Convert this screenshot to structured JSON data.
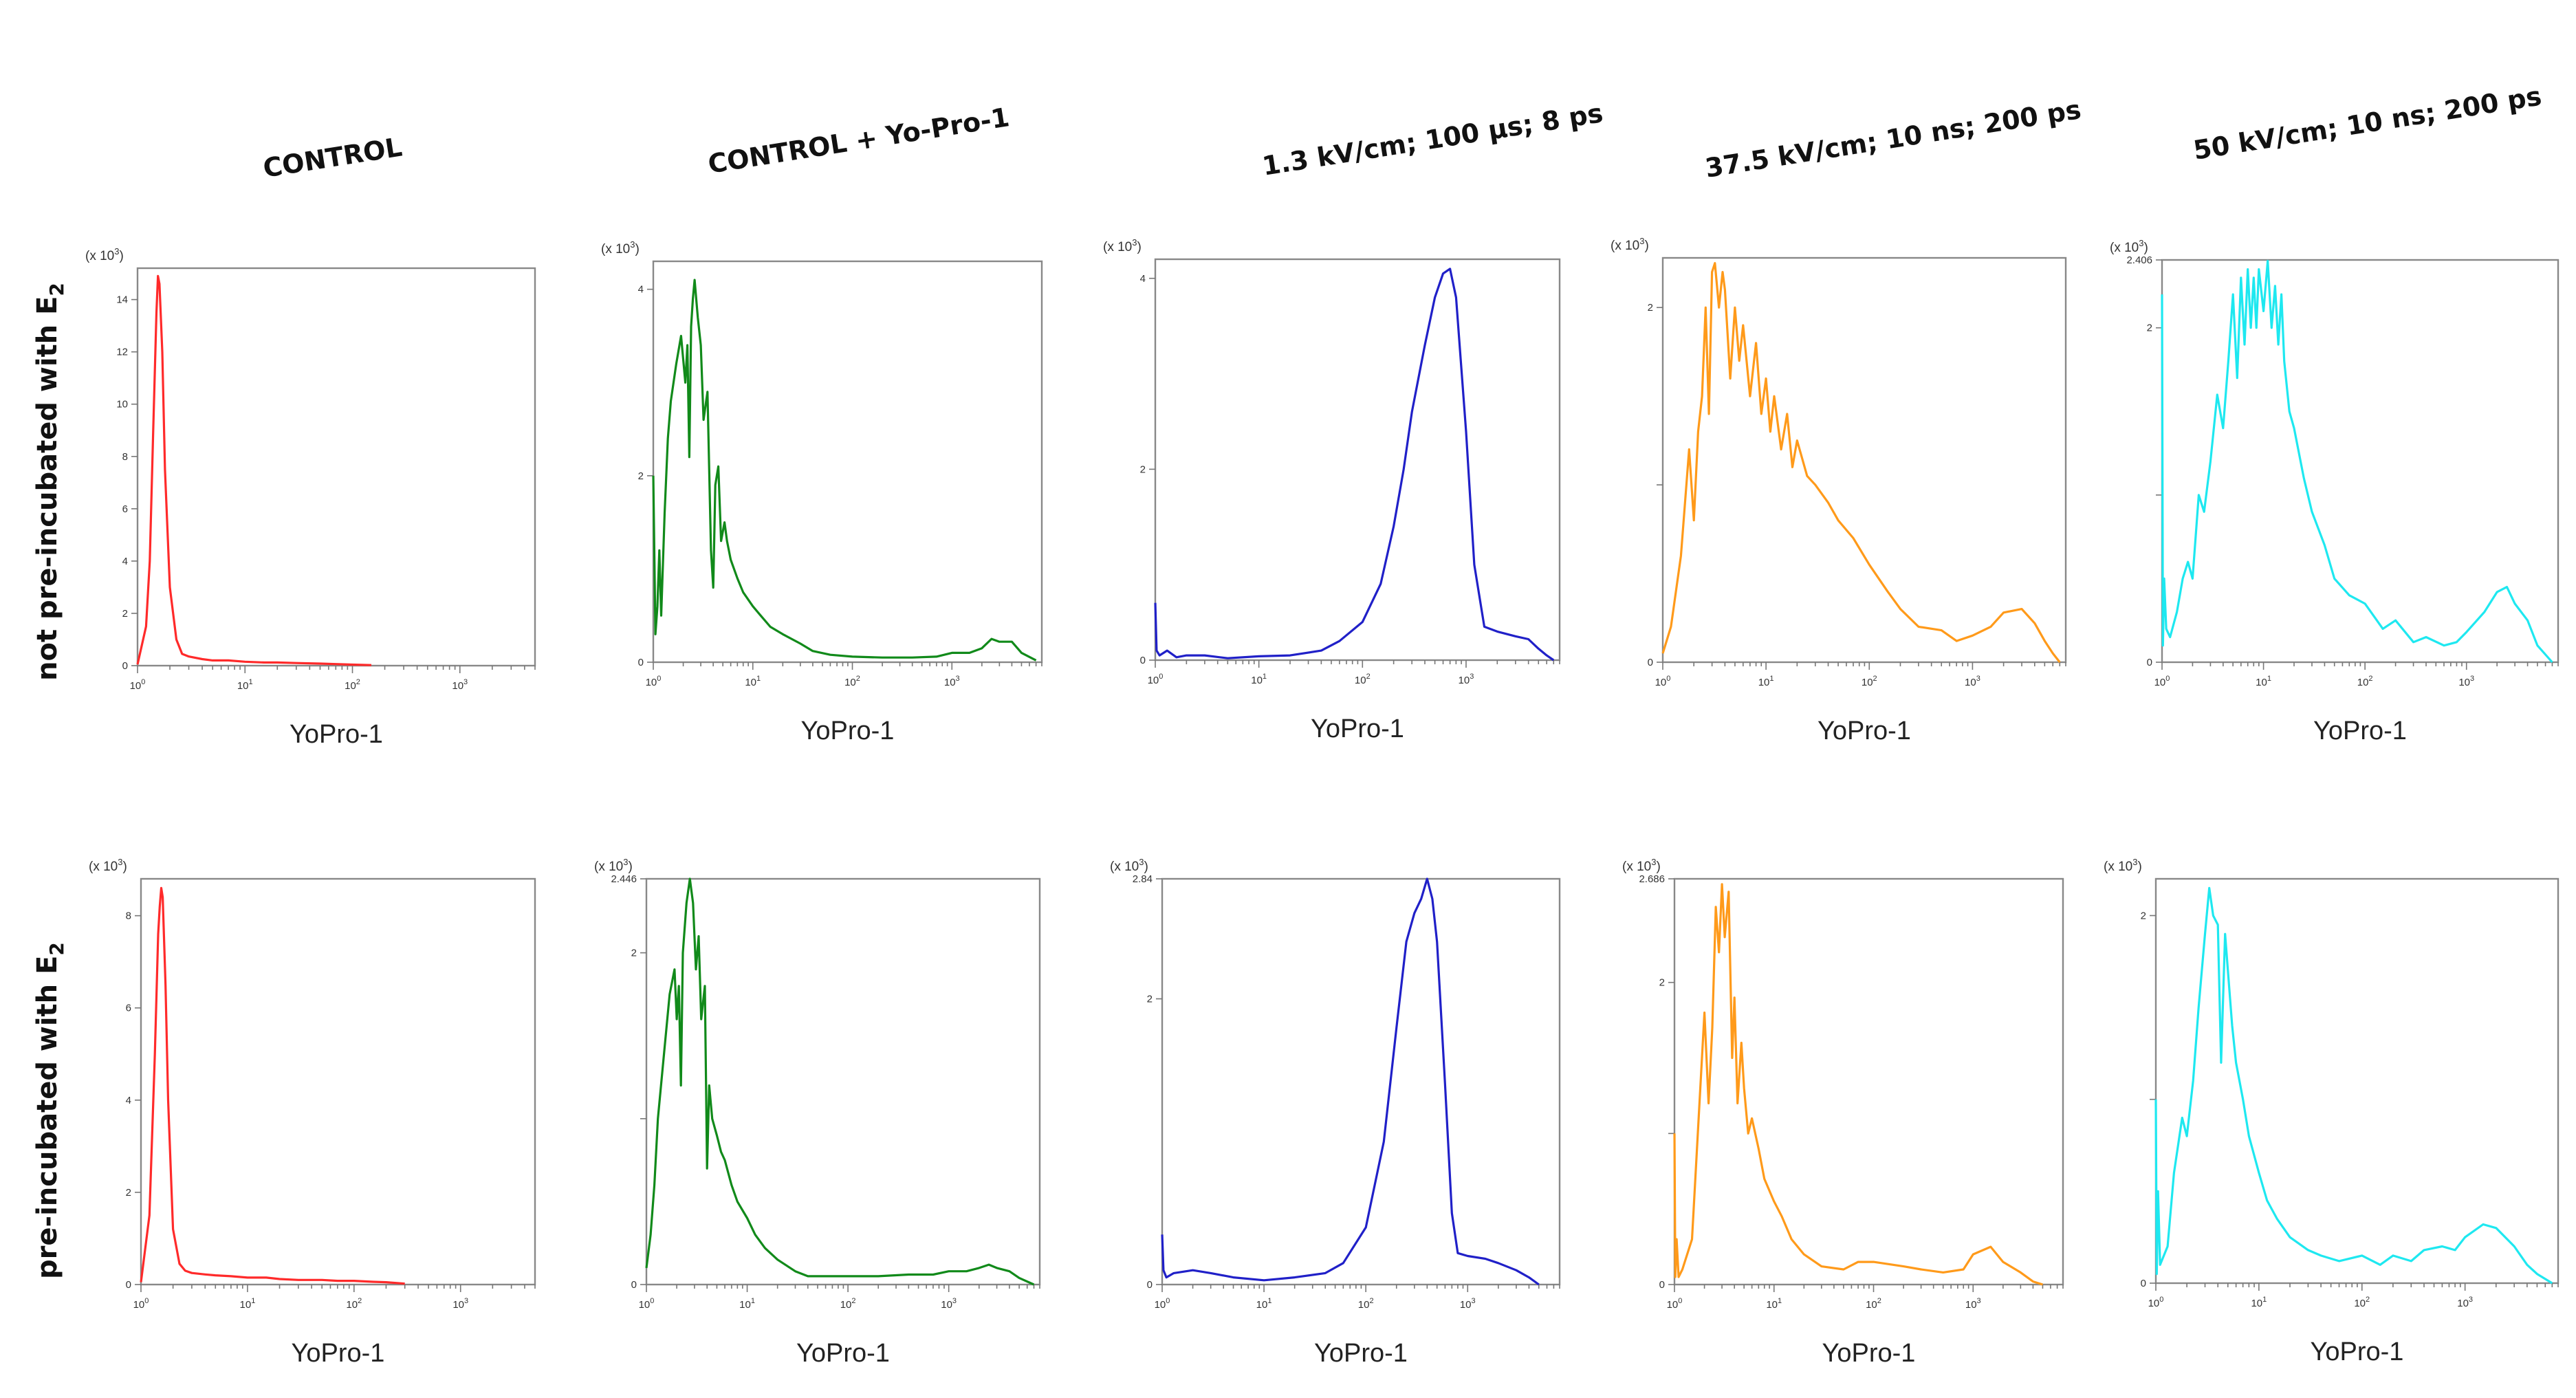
{
  "chart_data": {
    "type": "line",
    "column_titles": [
      "CONTROL",
      "CONTROL + Yo-Pro-1",
      "1.3 kV/cm; 100 µs; 8 ps",
      "37.5 kV/cm; 10 ns; 200 ps",
      "50 kV/cm; 10 ns; 200 ps"
    ],
    "row_titles": [
      "not pre-incubated with E",
      "pre-incubated with E"
    ],
    "row_title_subscript": "2",
    "y_multiplier_label": "(x 10",
    "y_multiplier_exp": "3",
    "y_multiplier_close": ")",
    "xlabel": "YoPro-1",
    "x_scale": "log",
    "x_tick_labels": [
      "0",
      "1",
      "2",
      "3"
    ],
    "panels": [
      {
        "row": 0,
        "col": 0,
        "color": "#ff2a2a",
        "xlim": [
          1,
          5000
        ],
        "ylim": [
          0,
          15.2
        ],
        "yticks": [
          0,
          2,
          4,
          6,
          8,
          10,
          12,
          14
        ],
        "ytick_labels": [
          "0",
          "2",
          "4",
          "6",
          "8",
          "10",
          "12",
          "14"
        ],
        "x_extent": 5000,
        "x": [
          1.0,
          1.2,
          1.3,
          1.4,
          1.5,
          1.55,
          1.6,
          1.7,
          1.8,
          2.0,
          2.3,
          2.6,
          3.0,
          4.0,
          5.0,
          7.0,
          10,
          15,
          20,
          30,
          50,
          70,
          100,
          150
        ],
        "y": [
          0.05,
          1.5,
          4.0,
          9.0,
          13.5,
          14.9,
          14.6,
          12.0,
          7.5,
          3.0,
          1.0,
          0.45,
          0.35,
          0.25,
          0.2,
          0.2,
          0.15,
          0.12,
          0.12,
          0.1,
          0.08,
          0.06,
          0.04,
          0.02
        ]
      },
      {
        "row": 0,
        "col": 1,
        "color": "#118a1a",
        "xlim": [
          1,
          8000
        ],
        "ylim": [
          0,
          4.3
        ],
        "yticks": [
          0,
          2,
          4
        ],
        "ytick_labels": [
          "0",
          "2",
          "4"
        ],
        "x_extent": 7000,
        "x": [
          1.0,
          1.05,
          1.1,
          1.15,
          1.2,
          1.3,
          1.4,
          1.5,
          1.7,
          1.9,
          2.1,
          2.2,
          2.3,
          2.4,
          2.5,
          2.6,
          2.8,
          3.0,
          3.2,
          3.5,
          3.8,
          4.0,
          4.2,
          4.5,
          4.8,
          5.2,
          5.5,
          6,
          7,
          8,
          10,
          12,
          15,
          20,
          30,
          40,
          60,
          100,
          200,
          400,
          700,
          1000,
          1500,
          2000,
          2500,
          3000,
          4000,
          5000,
          7000
        ],
        "y": [
          2.0,
          0.3,
          0.6,
          1.2,
          0.5,
          1.6,
          2.4,
          2.8,
          3.2,
          3.5,
          3.0,
          3.4,
          2.2,
          3.6,
          3.9,
          4.1,
          3.7,
          3.4,
          2.6,
          2.9,
          1.2,
          0.8,
          1.9,
          2.1,
          1.3,
          1.5,
          1.3,
          1.1,
          0.9,
          0.75,
          0.6,
          0.5,
          0.38,
          0.3,
          0.2,
          0.12,
          0.08,
          0.06,
          0.05,
          0.05,
          0.06,
          0.1,
          0.1,
          0.15,
          0.25,
          0.22,
          0.22,
          0.1,
          0.02
        ]
      },
      {
        "row": 0,
        "col": 2,
        "color": "#2020c8",
        "xlim": [
          1,
          8000
        ],
        "ylim": [
          0,
          4.2
        ],
        "yticks": [
          0,
          2,
          4
        ],
        "ytick_labels": [
          "0",
          "2",
          "4"
        ],
        "x_extent": 7000,
        "x": [
          1.0,
          1.03,
          1.1,
          1.3,
          1.6,
          2,
          3,
          5,
          10,
          20,
          40,
          60,
          100,
          150,
          200,
          250,
          300,
          400,
          500,
          600,
          700,
          800,
          1000,
          1200,
          1500,
          2000,
          3000,
          4000,
          5000,
          6000,
          7000
        ],
        "y": [
          0.6,
          0.1,
          0.05,
          0.1,
          0.03,
          0.05,
          0.05,
          0.02,
          0.04,
          0.05,
          0.1,
          0.2,
          0.4,
          0.8,
          1.4,
          2.0,
          2.6,
          3.3,
          3.8,
          4.05,
          4.1,
          3.8,
          2.4,
          1.0,
          0.35,
          0.3,
          0.25,
          0.22,
          0.12,
          0.05,
          0.0
        ]
      },
      {
        "row": 0,
        "col": 3,
        "color": "#ff9a1a",
        "xlim": [
          1,
          8000
        ],
        "ylim": [
          0,
          2.28
        ],
        "yticks": [
          0,
          1,
          2
        ],
        "ytick_labels": [
          "0",
          "",
          "2"
        ],
        "x_extent": 7000,
        "x": [
          1.0,
          1.2,
          1.5,
          1.8,
          2.0,
          2.2,
          2.4,
          2.6,
          2.8,
          3.0,
          3.2,
          3.5,
          3.8,
          4.0,
          4.5,
          5,
          5.5,
          6,
          7,
          8,
          9,
          10,
          11,
          12,
          14,
          16,
          18,
          20,
          25,
          30,
          40,
          50,
          70,
          100,
          150,
          200,
          300,
          500,
          700,
          1000,
          1500,
          2000,
          3000,
          4000,
          5000,
          6000,
          7000
        ],
        "y": [
          0.05,
          0.2,
          0.6,
          1.2,
          0.8,
          1.3,
          1.5,
          2.0,
          1.4,
          2.2,
          2.25,
          2.0,
          2.2,
          2.1,
          1.6,
          2.0,
          1.7,
          1.9,
          1.5,
          1.8,
          1.4,
          1.6,
          1.3,
          1.5,
          1.2,
          1.4,
          1.1,
          1.25,
          1.05,
          1.0,
          0.9,
          0.8,
          0.7,
          0.55,
          0.4,
          0.3,
          0.2,
          0.18,
          0.12,
          0.15,
          0.2,
          0.28,
          0.3,
          0.22,
          0.12,
          0.05,
          0.0
        ]
      },
      {
        "row": 0,
        "col": 4,
        "color": "#1ee8f0",
        "xlim": [
          1,
          8000
        ],
        "ylim": [
          0,
          2.406
        ],
        "yticks": [
          0,
          1,
          2,
          2.406
        ],
        "ytick_labels": [
          "0",
          "",
          "2",
          "2.406"
        ],
        "x_extent": 7000,
        "x": [
          1.0,
          1.02,
          1.05,
          1.1,
          1.2,
          1.4,
          1.6,
          1.8,
          2.0,
          2.3,
          2.6,
          3.0,
          3.5,
          4.0,
          4.5,
          5,
          5.5,
          6,
          6.5,
          7,
          7.5,
          8,
          8.5,
          9,
          10,
          11,
          12,
          13,
          14,
          15,
          16,
          18,
          20,
          25,
          30,
          40,
          50,
          70,
          100,
          150,
          200,
          300,
          400,
          600,
          800,
          1000,
          1500,
          2000,
          2500,
          3000,
          4000,
          5000,
          7000
        ],
        "y": [
          2.2,
          0.1,
          0.5,
          0.2,
          0.15,
          0.3,
          0.5,
          0.6,
          0.5,
          1.0,
          0.9,
          1.2,
          1.6,
          1.4,
          1.8,
          2.2,
          1.7,
          2.3,
          1.9,
          2.35,
          2.0,
          2.3,
          2.0,
          2.35,
          2.1,
          2.4,
          2.0,
          2.25,
          1.9,
          2.2,
          1.8,
          1.5,
          1.4,
          1.1,
          0.9,
          0.7,
          0.5,
          0.4,
          0.35,
          0.2,
          0.25,
          0.12,
          0.15,
          0.1,
          0.12,
          0.18,
          0.3,
          0.42,
          0.45,
          0.35,
          0.25,
          0.1,
          0.0
        ]
      },
      {
        "row": 1,
        "col": 0,
        "color": "#ff2a2a",
        "xlim": [
          1,
          5000
        ],
        "ylim": [
          0,
          8.8
        ],
        "yticks": [
          0,
          2,
          4,
          6,
          8
        ],
        "ytick_labels": [
          "0",
          "2",
          "4",
          "6",
          "8"
        ],
        "x_extent": 5000,
        "x": [
          1.0,
          1.2,
          1.35,
          1.45,
          1.5,
          1.55,
          1.6,
          1.7,
          1.8,
          2.0,
          2.3,
          2.6,
          3.0,
          4.0,
          5.0,
          7.0,
          10,
          15,
          20,
          30,
          50,
          70,
          100,
          150,
          200,
          300
        ],
        "y": [
          0.05,
          1.5,
          5.0,
          7.6,
          8.2,
          8.6,
          8.4,
          6.5,
          4.0,
          1.2,
          0.45,
          0.3,
          0.25,
          0.22,
          0.2,
          0.18,
          0.15,
          0.15,
          0.12,
          0.1,
          0.1,
          0.08,
          0.08,
          0.06,
          0.05,
          0.02
        ]
      },
      {
        "row": 1,
        "col": 1,
        "color": "#118a1a",
        "xlim": [
          1,
          8000
        ],
        "ylim": [
          0,
          2.446
        ],
        "yticks": [
          0,
          1,
          2,
          2.446
        ],
        "ytick_labels": [
          "0",
          "",
          "2",
          "2.446"
        ],
        "x_extent": 7000,
        "x": [
          1.0,
          1.1,
          1.2,
          1.3,
          1.5,
          1.7,
          1.9,
          2.0,
          2.1,
          2.2,
          2.3,
          2.5,
          2.7,
          2.9,
          3.1,
          3.3,
          3.5,
          3.8,
          4.0,
          4.2,
          4.5,
          5,
          5.5,
          6,
          7,
          8,
          10,
          12,
          15,
          20,
          30,
          40,
          60,
          100,
          200,
          400,
          700,
          1000,
          1500,
          2000,
          2500,
          3000,
          4000,
          5000,
          7000
        ],
        "y": [
          0.1,
          0.3,
          0.6,
          1.0,
          1.4,
          1.75,
          1.9,
          1.6,
          1.8,
          1.2,
          2.0,
          2.3,
          2.45,
          2.3,
          1.9,
          2.1,
          1.6,
          1.8,
          0.7,
          1.2,
          1.0,
          0.9,
          0.8,
          0.75,
          0.6,
          0.5,
          0.4,
          0.3,
          0.22,
          0.15,
          0.08,
          0.05,
          0.05,
          0.05,
          0.05,
          0.06,
          0.06,
          0.08,
          0.08,
          0.1,
          0.12,
          0.1,
          0.08,
          0.04,
          0.0
        ]
      },
      {
        "row": 1,
        "col": 2,
        "color": "#2020c8",
        "xlim": [
          1,
          8000
        ],
        "ylim": [
          0,
          2.84
        ],
        "yticks": [
          0,
          2,
          2.84
        ],
        "ytick_labels": [
          "0",
          "2",
          "2.84"
        ],
        "x_extent": 5000,
        "x": [
          1.0,
          1.03,
          1.1,
          1.3,
          2,
          3,
          5,
          10,
          20,
          40,
          60,
          100,
          150,
          200,
          250,
          300,
          350,
          400,
          450,
          500,
          600,
          700,
          800,
          1000,
          1500,
          2000,
          3000,
          4000,
          5000
        ],
        "y": [
          0.35,
          0.1,
          0.05,
          0.08,
          0.1,
          0.08,
          0.05,
          0.03,
          0.05,
          0.08,
          0.15,
          0.4,
          1.0,
          1.8,
          2.4,
          2.6,
          2.7,
          2.84,
          2.7,
          2.4,
          1.4,
          0.5,
          0.22,
          0.2,
          0.18,
          0.15,
          0.1,
          0.05,
          0.0
        ]
      },
      {
        "row": 1,
        "col": 3,
        "color": "#ff9a1a",
        "xlim": [
          1,
          8000
        ],
        "ylim": [
          0,
          2.686
        ],
        "yticks": [
          0,
          1,
          2,
          2.686
        ],
        "ytick_labels": [
          "0",
          "",
          "2",
          "2.686"
        ],
        "x_extent": 5000,
        "x": [
          1.0,
          1.02,
          1.05,
          1.1,
          1.2,
          1.5,
          2.0,
          2.2,
          2.4,
          2.6,
          2.8,
          3.0,
          3.2,
          3.5,
          3.8,
          4.0,
          4.3,
          4.7,
          5,
          5.5,
          6,
          7,
          8,
          10,
          12,
          15,
          20,
          30,
          50,
          70,
          100,
          200,
          300,
          500,
          800,
          1000,
          1500,
          2000,
          3000,
          4000,
          5000
        ],
        "y": [
          1.0,
          0.05,
          0.3,
          0.05,
          0.1,
          0.3,
          1.8,
          1.2,
          1.7,
          2.5,
          2.2,
          2.65,
          2.3,
          2.6,
          1.5,
          1.9,
          1.2,
          1.6,
          1.3,
          1.0,
          1.1,
          0.9,
          0.7,
          0.55,
          0.45,
          0.3,
          0.2,
          0.12,
          0.1,
          0.15,
          0.15,
          0.12,
          0.1,
          0.08,
          0.1,
          0.2,
          0.25,
          0.15,
          0.08,
          0.02,
          0.0
        ]
      },
      {
        "row": 1,
        "col": 4,
        "color": "#1ee8f0",
        "xlim": [
          1,
          8000
        ],
        "ylim": [
          0,
          2.2
        ],
        "yticks": [
          0,
          1,
          2
        ],
        "ytick_labels": [
          "0",
          "",
          "2"
        ],
        "x_extent": 7000,
        "x": [
          1.0,
          1.02,
          1.05,
          1.1,
          1.3,
          1.5,
          1.8,
          2.0,
          2.3,
          2.6,
          3.0,
          3.3,
          3.6,
          4.0,
          4.3,
          4.7,
          5,
          5.5,
          6,
          7,
          8,
          10,
          12,
          15,
          20,
          30,
          40,
          60,
          100,
          150,
          200,
          300,
          400,
          600,
          800,
          1000,
          1500,
          2000,
          3000,
          4000,
          5000,
          7000
        ],
        "y": [
          1.0,
          0.05,
          0.5,
          0.1,
          0.2,
          0.6,
          0.9,
          0.8,
          1.1,
          1.5,
          1.9,
          2.15,
          2.0,
          1.95,
          1.2,
          1.9,
          1.7,
          1.4,
          1.2,
          1.0,
          0.8,
          0.6,
          0.45,
          0.35,
          0.25,
          0.18,
          0.15,
          0.12,
          0.15,
          0.1,
          0.15,
          0.12,
          0.18,
          0.2,
          0.18,
          0.25,
          0.32,
          0.3,
          0.2,
          0.1,
          0.05,
          0.0
        ]
      }
    ]
  }
}
